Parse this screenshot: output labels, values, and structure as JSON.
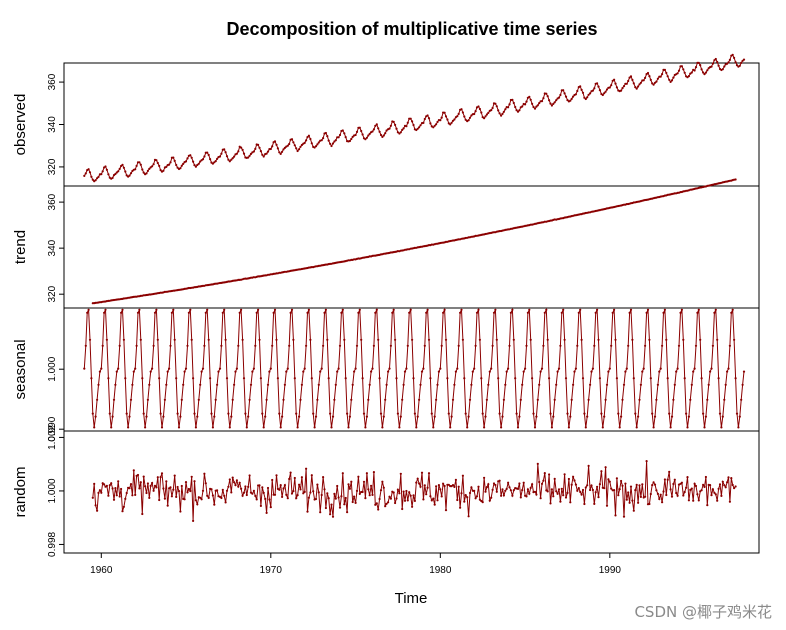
{
  "chart_data": {
    "type": "line",
    "title": "Decomposition of multiplicative time series",
    "xlabel": "Time",
    "xlim": [
      1957.8,
      1998.8
    ],
    "x_ticks": [
      1960,
      1970,
      1980,
      1990
    ],
    "line_color": "#8b0000",
    "x_start": 1959.0,
    "frequency": 12,
    "panels": [
      {
        "name": "observed",
        "ylabel": "observed",
        "ylim": [
          311.0,
          369.0
        ],
        "y_ticks": [
          320,
          340,
          360
        ],
        "start": 1959.0,
        "end": 1997.917,
        "model": {
          "base": 315.5,
          "slope": 1.1,
          "curve": 0.0082,
          "seasonal_amp": 3.0,
          "noise": 0.25
        }
      },
      {
        "name": "trend",
        "ylabel": "trend",
        "ylim": [
          314.0,
          367.0
        ],
        "y_ticks": [
          320,
          340,
          360
        ],
        "start": 1959.5,
        "end": 1997.417,
        "model": {
          "base": 315.5,
          "slope": 1.1,
          "curve": 0.0082,
          "seasonal_amp": 0,
          "noise": 0.05
        }
      },
      {
        "name": "seasonal",
        "ylabel": "seasonal",
        "ylim": [
          0.9897,
          1.0102
        ],
        "y_ticks": [
          0.99,
          1.0
        ],
        "start": 1959.0,
        "end": 1997.917,
        "seasonal_pattern": [
          1.0001,
          1.0039,
          1.0094,
          1.0099,
          1.0049,
          0.9985,
          0.9926,
          0.9903,
          0.9921,
          0.9949,
          0.9974,
          0.9996
        ]
      },
      {
        "name": "random",
        "ylabel": "random",
        "ylim": [
          0.99768,
          1.00224
        ],
        "y_ticks": [
          0.998,
          1.0,
          1.002
        ],
        "start": 1959.5,
        "end": 1997.417,
        "model": {
          "base": 1.0,
          "noise": 0.0005
        }
      }
    ]
  },
  "watermark": "CSDN @椰子鸡米花"
}
